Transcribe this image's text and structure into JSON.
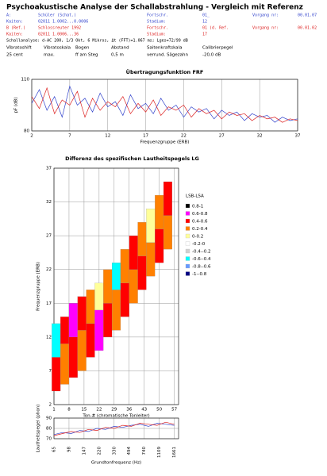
{
  "header": {
    "title": "Psychoakustische Analyse der Schallabstrahlung - Vergleich mit Referenz",
    "rows": [
      [
        "A:",
        "Schüler (Schat.)",
        "Fortschr.",
        "01_",
        "Vorgang nr:",
        "00.01.07"
      ],
      [
        "Kaiten:",
        "02011 1.0002...0.0006",
        "Stadium:",
        "12"
      ],
      [
        "B (Ref.)",
        "Schlossreuter 1992",
        "Fortschr.",
        "01 (d. Ref.",
        "Vorgang nr:",
        "00.01.02"
      ],
      [
        "Kaiten:",
        "02011 1.0006...36",
        "Stadium:",
        "17"
      ]
    ],
    "analysis": "Schallanalyse: d-AC 200, 1/3 Okt, 6 Mikros, Δt (FFT)=1.067 ms; Lges=72/99 dB",
    "table": {
      "headers": [
        "Vibratoshift",
        "Vibratoskala",
        "Bogen",
        "Abstand",
        "Saitenkraftskala",
        "Calibrierpegel"
      ],
      "values": [
        "25 cent",
        "max.",
        "ff am Steg",
        "0,5 m",
        "verrund. Sägezahn",
        "-20,0 dB"
      ]
    }
  },
  "chart_data": [
    {
      "type": "line",
      "title": "Übertragungsfunktion FRF",
      "xlabel": "Frequenzgruppe (ERB)",
      "ylabel": "pF (dB)",
      "x": [
        2,
        3,
        4,
        5,
        6,
        7,
        8,
        9,
        10,
        11,
        12,
        13,
        14,
        15,
        16,
        17,
        18,
        19,
        20,
        21,
        22,
        23,
        24,
        25,
        26,
        27,
        28,
        29,
        30,
        31,
        32,
        33,
        34,
        35,
        36,
        37
      ],
      "series": [
        {
          "color": "#3344cc",
          "values": [
            96,
            104,
            92,
            100,
            88,
            106,
            95,
            99,
            91,
            102,
            94,
            97,
            89,
            101,
            93,
            96,
            90,
            99,
            92,
            95,
            88,
            94,
            91,
            93,
            87,
            92,
            89,
            91,
            86,
            90,
            88,
            89,
            85,
            88,
            86,
            87
          ]
        },
        {
          "color": "#dd2222",
          "values": [
            100,
            93,
            105,
            90,
            98,
            95,
            103,
            88,
            99,
            92,
            97,
            94,
            100,
            90,
            96,
            91,
            98,
            89,
            94,
            92,
            95,
            88,
            93,
            90,
            92,
            87,
            91,
            89,
            90,
            86,
            89,
            87,
            88,
            85,
            87,
            86
          ]
        }
      ],
      "xlim": [
        2,
        37
      ],
      "ylim": [
        80,
        110
      ],
      "xticks": [
        2,
        7,
        12,
        17,
        22,
        27,
        32,
        37
      ],
      "yticks": [
        80,
        110
      ],
      "grid": true
    },
    {
      "type": "heatmap",
      "title": "Differenz des spezifischen Lautheitspegels LG",
      "xlabel": "Ton-# (chromatische Tonleiter)",
      "ylabel": "Frequenzgruppe (ERB)",
      "cells": [
        {
          "x": 2,
          "y0": 4,
          "y1": 9,
          "color": "#ff0000"
        },
        {
          "x": 2,
          "y0": 9,
          "y1": 14,
          "color": "#00ffff"
        },
        {
          "x": 6,
          "y0": 5,
          "y1": 11,
          "color": "#ff8000"
        },
        {
          "x": 6,
          "y0": 11,
          "y1": 15,
          "color": "#ff0000"
        },
        {
          "x": 10,
          "y0": 6,
          "y1": 12,
          "color": "#ff0000"
        },
        {
          "x": 10,
          "y0": 12,
          "y1": 17,
          "color": "#ff00ff"
        },
        {
          "x": 14,
          "y0": 7,
          "y1": 13,
          "color": "#ff8000"
        },
        {
          "x": 14,
          "y0": 13,
          "y1": 18,
          "color": "#ff0000"
        },
        {
          "x": 18,
          "y0": 9,
          "y1": 14,
          "color": "#ff0000"
        },
        {
          "x": 18,
          "y0": 14,
          "y1": 19,
          "color": "#ff8000"
        },
        {
          "x": 22,
          "y0": 10,
          "y1": 16,
          "color": "#ff00ff"
        },
        {
          "x": 22,
          "y0": 16,
          "y1": 20,
          "color": "#ffff99"
        },
        {
          "x": 26,
          "y0": 12,
          "y1": 17,
          "color": "#ff0000"
        },
        {
          "x": 26,
          "y0": 17,
          "y1": 22,
          "color": "#ff8000"
        },
        {
          "x": 30,
          "y0": 13,
          "y1": 19,
          "color": "#ff8000"
        },
        {
          "x": 30,
          "y0": 19,
          "y1": 23,
          "color": "#00ffff"
        },
        {
          "x": 34,
          "y0": 15,
          "y1": 20,
          "color": "#ff0000"
        },
        {
          "x": 34,
          "y0": 20,
          "y1": 25,
          "color": "#ff8000"
        },
        {
          "x": 38,
          "y0": 17,
          "y1": 22,
          "color": "#ff8000"
        },
        {
          "x": 38,
          "y0": 22,
          "y1": 27,
          "color": "#ff0000"
        },
        {
          "x": 42,
          "y0": 19,
          "y1": 24,
          "color": "#ff0000"
        },
        {
          "x": 42,
          "y0": 24,
          "y1": 29,
          "color": "#ff8000"
        },
        {
          "x": 46,
          "y0": 21,
          "y1": 26,
          "color": "#ff8000"
        },
        {
          "x": 46,
          "y0": 26,
          "y1": 31,
          "color": "#ffff99"
        },
        {
          "x": 50,
          "y0": 23,
          "y1": 28,
          "color": "#ff0000"
        },
        {
          "x": 50,
          "y0": 28,
          "y1": 33,
          "color": "#ff8000"
        },
        {
          "x": 54,
          "y0": 25,
          "y1": 30,
          "color": "#ff8000"
        },
        {
          "x": 54,
          "y0": 30,
          "y1": 35,
          "color": "#ff0000"
        }
      ],
      "legend_title": "LSB-LSA",
      "legend": [
        {
          "label": "0.8-1",
          "color": "#000000"
        },
        {
          "label": "0.6-0.8",
          "color": "#ff00ff"
        },
        {
          "label": "0.4-0.6",
          "color": "#ff0000"
        },
        {
          "label": "0.2-0.4",
          "color": "#ff8000"
        },
        {
          "label": "0-0.2",
          "color": "#ffff99"
        },
        {
          "label": "-0.2-0",
          "color": "#ffffff"
        },
        {
          "label": "-0.4--0.2",
          "color": "#d0d0d0"
        },
        {
          "label": "-0.6--0.4",
          "color": "#00ffff"
        },
        {
          "label": "-0.8--0.6",
          "color": "#6699ff"
        },
        {
          "label": "-1--0.8",
          "color": "#000080"
        }
      ],
      "xlim": [
        1,
        59
      ],
      "ylim": [
        2,
        37
      ],
      "xticks": [
        1,
        8,
        15,
        22,
        29,
        36,
        43,
        50,
        57
      ],
      "yticks": [
        2,
        7,
        12,
        17,
        22,
        27,
        32,
        37
      ],
      "grid": true
    },
    {
      "type": "line",
      "xlabel": "Grundtonfrequenz (Hz)",
      "ylabel": "Lautheitspegel (phon)",
      "x": [
        1,
        5,
        9,
        13,
        17,
        21,
        25,
        29,
        33,
        37,
        41,
        45,
        49,
        53,
        57
      ],
      "series": [
        {
          "color": "#3344cc",
          "values": [
            74,
            76,
            75,
            78,
            77,
            80,
            79,
            82,
            81,
            83,
            84,
            82,
            85,
            84,
            83
          ]
        },
        {
          "color": "#dd2222",
          "values": [
            73,
            75,
            77,
            76,
            79,
            78,
            81,
            80,
            83,
            82,
            85,
            84,
            83,
            86,
            84
          ]
        }
      ],
      "xlim": [
        1,
        59
      ],
      "ylim": [
        70,
        90
      ],
      "xticks": [
        {
          "value": 1,
          "label": "65"
        },
        {
          "value": 8,
          "label": "98"
        },
        {
          "value": 15,
          "label": "147"
        },
        {
          "value": 22,
          "label": "220"
        },
        {
          "value": 29,
          "label": "330"
        },
        {
          "value": 36,
          "label": "494"
        },
        {
          "value": 43,
          "label": "740"
        },
        {
          "value": 50,
          "label": "1109"
        },
        {
          "value": 57,
          "label": "1661"
        }
      ],
      "yticks": [
        70,
        80,
        90
      ],
      "grid": true
    }
  ]
}
